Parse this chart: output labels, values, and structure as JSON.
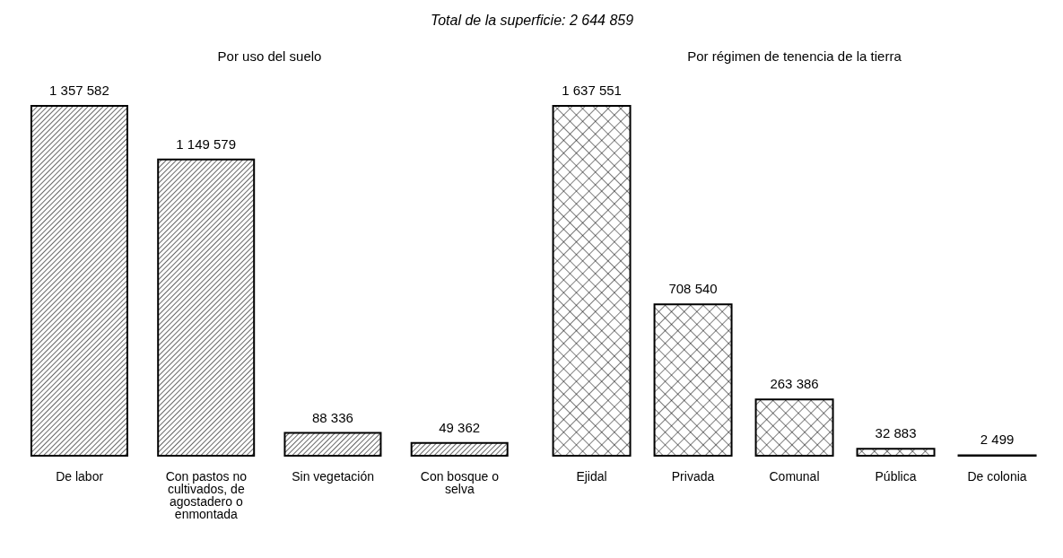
{
  "chart_data": [
    {
      "type": "other",
      "title": "Total de la superficie: 2 644 859"
    },
    {
      "type": "bar",
      "title": "Por uso del suelo",
      "categories": [
        "De labor",
        "Con pastos no cultivados, de agostadero o enmontada",
        "Sin vegetación",
        "Con bosque o selva"
      ],
      "values": [
        1357582,
        1149579,
        88336,
        49362
      ],
      "color": "#000000",
      "data_labels": true
    },
    {
      "type": "bar",
      "title": "Por régimen de tenencia de la tierra",
      "categories": [
        "Ejidal",
        "Privada",
        "Comunal",
        "Pública",
        "De colonia"
      ],
      "values": [
        1637551,
        708540,
        263386,
        32883,
        2499
      ],
      "color": "#000000",
      "data_labels": true
    }
  ]
}
